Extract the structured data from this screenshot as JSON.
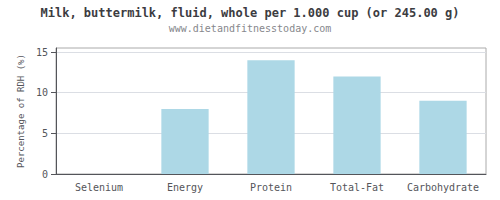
{
  "chart_data": {
    "type": "bar",
    "title": "Milk, buttermilk, fluid, whole per 1.000 cup (or 245.00 g)",
    "subtitle": "www.dietandfitnesstoday.com",
    "categories": [
      "Selenium",
      "Energy",
      "Protein",
      "Total-Fat",
      "Carbohydrate"
    ],
    "values": [
      0,
      8,
      14,
      12,
      9
    ],
    "color": "#add8e6",
    "ylabel": "Percentage of RDH (%)",
    "ylim": [
      0,
      15.5
    ],
    "yticks": [
      0,
      5,
      10,
      15
    ],
    "grid": true
  }
}
